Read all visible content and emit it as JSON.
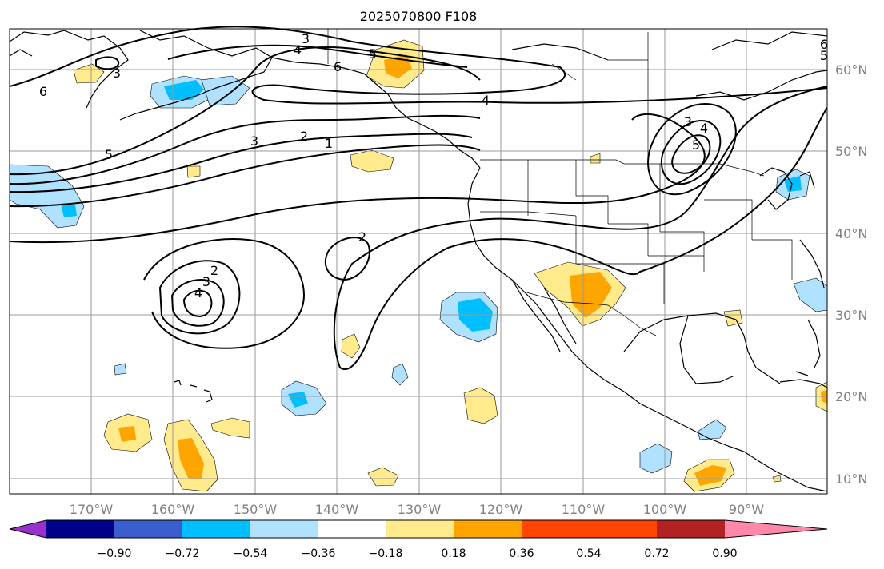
{
  "title": "2025070800 F108",
  "longitude_labels": [
    "170°W",
    "160°W",
    "150°W",
    "140°W",
    "130°W",
    "120°W",
    "110°W",
    "100°W",
    "90°W"
  ],
  "latitude_labels": [
    "60°N",
    "50°N",
    "40°N",
    "30°N",
    "20°N",
    "10°N"
  ],
  "colorbar": {
    "tick_labels": [
      "−0.90",
      "−0.72",
      "−0.54",
      "−0.36",
      "−0.18",
      "0.18",
      "0.36",
      "0.54",
      "0.72",
      "0.90"
    ],
    "colors": [
      "#9932cc",
      "#00008b",
      "#3a5fcd",
      "#00bfff",
      "#b0e2ff",
      "#ffffff",
      "#ffeb8c",
      "#ffa500",
      "#ff4500",
      "#b22222",
      "#ff88aa"
    ]
  },
  "contour_labels": [
    "3",
    "4",
    "5",
    "6",
    "3",
    "6",
    "4",
    "5",
    "3",
    "2",
    "1",
    "6",
    "5",
    "2",
    "2",
    "3",
    "4",
    "3",
    "4",
    "5"
  ],
  "fill_colors": {
    "yellow": "#ffeb8c",
    "orange": "#ffa500",
    "light_blue": "#b0e2ff",
    "blue": "#00bfff"
  }
}
